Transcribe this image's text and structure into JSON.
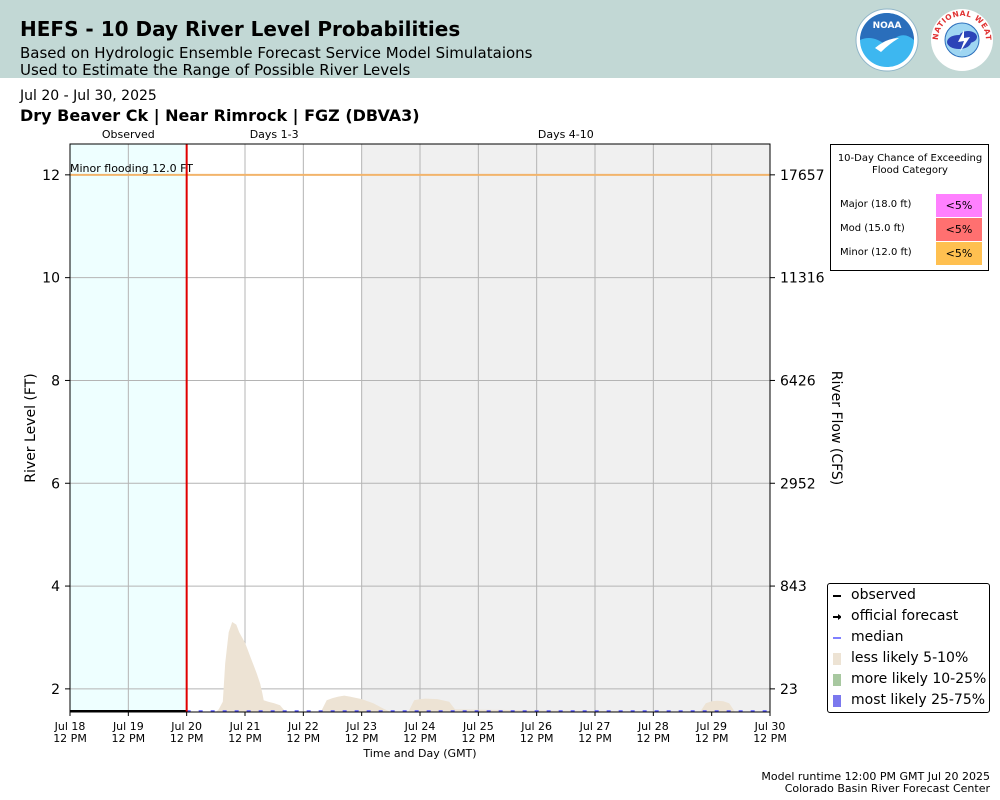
{
  "header": {
    "title": "HEFS - 10 Day River Level Probabilities",
    "subtitle1": "Based on Hydrologic Ensemble Forecast Service Model Simulataions",
    "subtitle2": "Used to Estimate the Range of Possible River Levels",
    "noaa_logo_text": "NOAA",
    "nws_logo_text": "NATIONAL WEATHER SERVICE",
    "colors": {
      "background": "#c2d8d5",
      "noaa_blue": "#2a6ebb",
      "nws_red": "#e03131"
    }
  },
  "date_range": "Jul 20 - Jul 30, 2025",
  "location_title": "Dry Beaver Ck | Near Rimrock | FGZ (DBVA3)",
  "flood_chance": {
    "title": "10-Day Chance of Exceeding Flood Category",
    "rows": [
      {
        "label": "Major (18.0 ft)",
        "value": "<5%",
        "color": "#ff80ff"
      },
      {
        "label": "Mod (15.0 ft)",
        "value": "<5%",
        "color": "#ff7070"
      },
      {
        "label": "Minor (12.0 ft)",
        "value": "<5%",
        "color": "#ffc050"
      }
    ]
  },
  "legend": {
    "items": [
      {
        "label": "observed",
        "icon": "line-swatch",
        "color": "#000000"
      },
      {
        "label": "official forecast",
        "icon": "arrow-line-swatch",
        "color": "#000000"
      },
      {
        "label": "median",
        "icon": "line-swatch",
        "color": "#5555ff"
      },
      {
        "label": "less likely 5-10%",
        "icon": "box-swatch",
        "color": "#ede3d4"
      },
      {
        "label": "more likely 10-25%",
        "icon": "box-swatch",
        "color": "#a8c8a0"
      },
      {
        "label": "most likely 25-75%",
        "icon": "box-swatch",
        "color": "#7b78ee"
      }
    ]
  },
  "footer": {
    "runtime": "Model runtime 12:00 PM GMT Jul 20 2025",
    "center": "Colorado Basin River Forecast Center"
  },
  "chart_data": {
    "type": "area",
    "xlabel": "Time and Day (GMT)",
    "ylabel": "River Level (FT)",
    "y2label": "River Flow (CFS)",
    "ylim": [
      1.55,
      12.6
    ],
    "xlim": [
      0,
      10.2
    ],
    "x_ticks": [
      {
        "date": "Jul 18",
        "time": "12 PM"
      },
      {
        "date": "Jul 19",
        "time": "12 PM"
      },
      {
        "date": "Jul 20",
        "time": "12 PM"
      },
      {
        "date": "Jul 21",
        "time": "12 PM"
      },
      {
        "date": "Jul 22",
        "time": "12 PM"
      },
      {
        "date": "Jul 23",
        "time": "12 PM"
      },
      {
        "date": "Jul 24",
        "time": "12 PM"
      },
      {
        "date": "Jul 25",
        "time": "12 PM"
      },
      {
        "date": "Jul 26",
        "time": "12 PM"
      },
      {
        "date": "Jul 27",
        "time": "12 PM"
      },
      {
        "date": "Jul 28",
        "time": "12 PM"
      },
      {
        "date": "Jul 29",
        "time": "12 PM"
      },
      {
        "date": "Jul 30",
        "time": "12 PM"
      }
    ],
    "y_ticks": [
      2,
      4,
      6,
      8,
      10,
      12
    ],
    "y2_ticks": [
      {
        "stage": 2,
        "label": "23"
      },
      {
        "stage": 4,
        "label": "843"
      },
      {
        "stage": 6,
        "label": "2952"
      },
      {
        "stage": 8,
        "label": "6426"
      },
      {
        "stage": 10,
        "label": "11316"
      },
      {
        "stage": 12,
        "label": "17657"
      }
    ],
    "period_labels": [
      {
        "label": "Observed",
        "x": -1
      },
      {
        "label": "Days 1-3",
        "x": 1.5
      },
      {
        "label": "Days 4-10",
        "x": 6.5
      }
    ],
    "forecast_start": {
      "date": "Jul 20",
      "time": "12 PM"
    },
    "flood_line": {
      "label": "Minor flooding 12.0 FT",
      "stage": 12.0,
      "color": "#f2b46c"
    },
    "shading": {
      "observed_color": "#eeffff",
      "days_4_10_color": "#f0f0f0"
    },
    "series": [
      {
        "name": "observed",
        "color": "#000000",
        "x": [
          -2,
          0
        ],
        "y": [
          1.55,
          1.55
        ]
      },
      {
        "name": "median",
        "color": "#5555ff",
        "x": [
          0,
          10
        ],
        "y": [
          1.55,
          1.55
        ]
      },
      {
        "name": "less likely 5-10%",
        "color": "#ede3d4",
        "x": [
          0.5,
          0.55,
          0.62,
          0.66,
          0.72,
          0.78,
          0.85,
          0.9,
          0.95,
          1.0,
          1.05,
          1.1,
          1.15,
          1.2,
          1.26,
          1.3,
          1.32,
          1.4,
          1.5,
          1.6,
          1.7,
          2.0,
          2.3,
          2.4,
          2.5,
          2.6,
          2.7,
          2.8,
          3.0,
          3.2,
          3.4,
          3.5,
          3.6,
          3.8,
          3.9,
          4.0,
          4.1,
          4.3,
          4.5,
          4.6,
          8.8,
          8.9,
          9.0,
          9.1,
          9.2,
          9.3,
          9.4
        ],
        "y": [
          1.55,
          1.6,
          1.75,
          2.5,
          3.1,
          3.3,
          3.25,
          3.1,
          3.0,
          2.9,
          2.75,
          2.6,
          2.45,
          2.3,
          2.1,
          1.9,
          1.78,
          1.75,
          1.72,
          1.68,
          1.55,
          1.55,
          1.55,
          1.78,
          1.82,
          1.85,
          1.87,
          1.85,
          1.8,
          1.72,
          1.6,
          1.55,
          1.55,
          1.55,
          1.78,
          1.8,
          1.81,
          1.8,
          1.75,
          1.6,
          1.55,
          1.72,
          1.76,
          1.77,
          1.76,
          1.72,
          1.55
        ]
      }
    ]
  }
}
